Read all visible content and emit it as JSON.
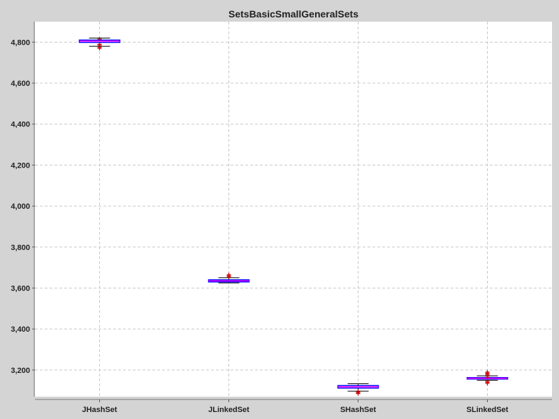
{
  "chart_data": {
    "type": "box",
    "title": "SetsBasicSmallGeneralSets",
    "xlabel": "",
    "ylabel": "",
    "categories": [
      "JHashSet",
      "JLinkedSet",
      "SHashSet",
      "SLinkedSet"
    ],
    "ylim": [
      3070,
      4900
    ],
    "yticks": [
      3200,
      3400,
      3600,
      3800,
      4000,
      4200,
      4400,
      4600,
      4800
    ],
    "ytick_labels": [
      "3,200",
      "3,400",
      "3,600",
      "3,800",
      "4,000",
      "4,200",
      "4,400",
      "4,600",
      "4,800"
    ],
    "grid": true,
    "boxes": [
      {
        "category": "JHashSet",
        "whisker_low": 4780,
        "q1": 4799,
        "median": 4805,
        "q3": 4810,
        "whisker_high": 4820,
        "outliers": [
          4770,
          4775,
          4785,
          4790,
          4815
        ]
      },
      {
        "category": "JLinkedSet",
        "whisker_low": 3625,
        "q1": 3630,
        "median": 3635,
        "q3": 3640,
        "whisker_high": 3650,
        "outliers": [
          3655,
          3660,
          3665
        ]
      },
      {
        "category": "SHashSet",
        "whisker_low": 3097,
        "q1": 3112,
        "median": 3118,
        "q3": 3124,
        "whisker_high": 3133,
        "outliers": [
          3085,
          3090,
          3094
        ]
      },
      {
        "category": "SLinkedSet",
        "whisker_low": 3150,
        "q1": 3156,
        "median": 3160,
        "q3": 3163,
        "whisker_high": 3172,
        "outliers": [
          3135,
          3140,
          3145,
          3165,
          3175,
          3180,
          3185,
          3190
        ]
      }
    ],
    "colors": {
      "background": "#d4d4d4",
      "plot_background": "#ffffff",
      "grid": "#c8c8c8",
      "box_fill": "#ffffff",
      "box_stroke": "#0000ff",
      "median": "#ff00ff",
      "whisker": "#000000",
      "outlier": "#cc0000"
    }
  }
}
